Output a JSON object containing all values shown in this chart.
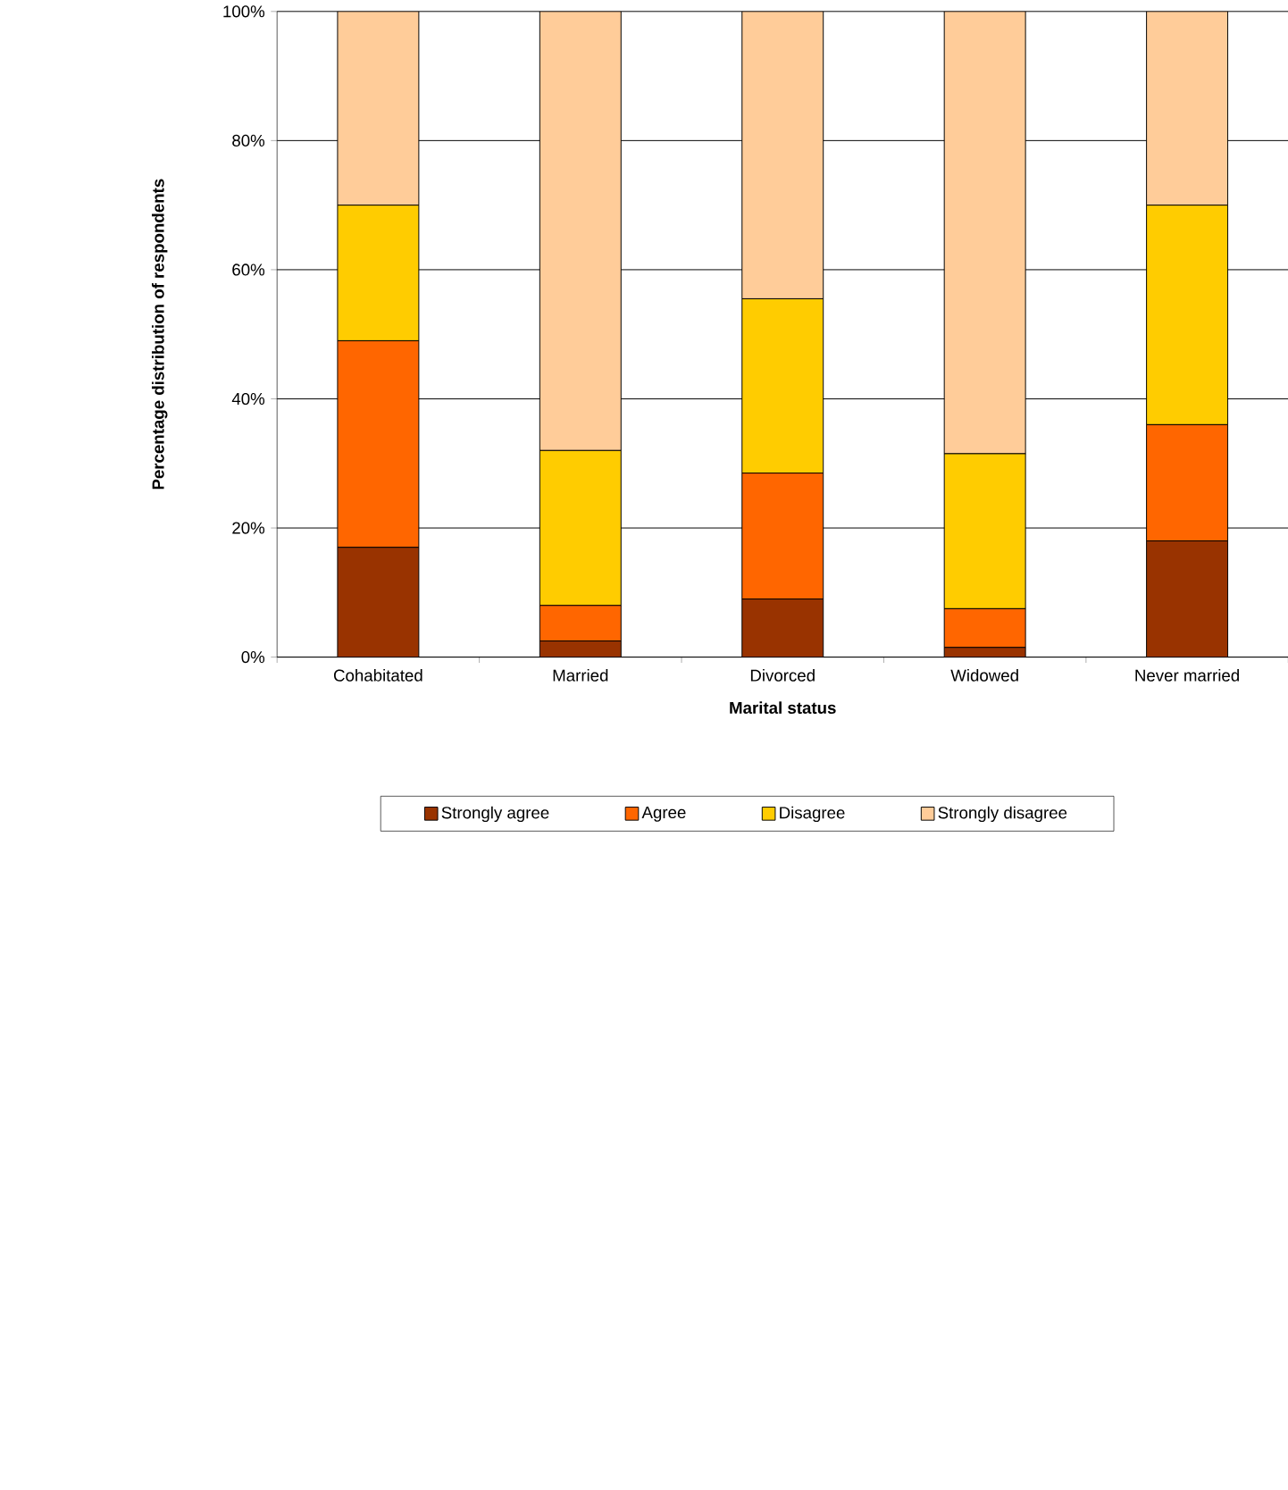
{
  "chart_data": {
    "type": "bar",
    "stacked": true,
    "xlabel": "Marital status",
    "ylabel": "Percentage distribution of respondents",
    "categories": [
      "Cohabitated",
      "Married",
      "Divorced",
      "Widowed",
      "Never married"
    ],
    "series": [
      {
        "name": "Strongly agree",
        "color": "#993300",
        "values": [
          17,
          2.5,
          9,
          1.5,
          18
        ]
      },
      {
        "name": "Agree",
        "color": "#ff6600",
        "values": [
          32,
          5.5,
          19.5,
          6,
          18
        ]
      },
      {
        "name": "Disagree",
        "color": "#ffcc00",
        "values": [
          21,
          24,
          27,
          24,
          34
        ]
      },
      {
        "name": "Strongly disagree",
        "color": "#ffcc99",
        "values": [
          30,
          68,
          44.5,
          68.5,
          30
        ]
      }
    ],
    "ylim": [
      0,
      100
    ],
    "yticks": [
      {
        "value": 0,
        "label": "0%"
      },
      {
        "value": 20,
        "label": "20%"
      },
      {
        "value": 40,
        "label": "40%"
      },
      {
        "value": 60,
        "label": "60%"
      },
      {
        "value": 80,
        "label": "80%"
      },
      {
        "value": 100,
        "label": "100%"
      }
    ],
    "grid": "y",
    "legend": "bottom"
  }
}
